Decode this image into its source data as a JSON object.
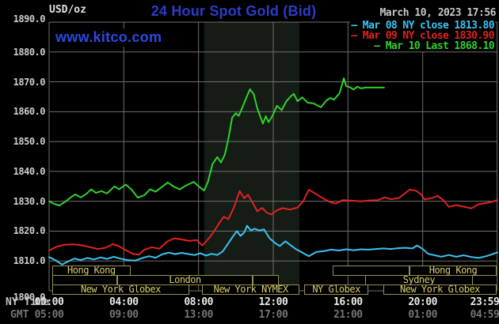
{
  "page": {
    "title": "24 Hour Spot Gold (Bid)",
    "datetime": "March 10, 2023 17:56",
    "watermark": "www.kitco.com",
    "y_axis_unit": "USD/oz",
    "x_axis_row1_label": "NY Time",
    "x_axis_row2_label": "GMT"
  },
  "colors": {
    "background": "#000000",
    "grid": "#6f6f6f",
    "title_blue": "#2b3cc8",
    "watermark_blue": "#2c49e2",
    "session_border": "#96904e",
    "session_text": "#d8ca74",
    "band": "#151c15",
    "mar08_cyan": "#3ac4f2",
    "mar09_red": "#e02222",
    "mar10_green": "#2fd22f"
  },
  "legend": [
    {
      "label": "Mar 08 NY close 1813.80",
      "color": "#3ac4f2"
    },
    {
      "label": "Mar 09 NY close 1830.90",
      "color": "#e02222"
    },
    {
      "label": "Mar 10 Last 1868.10",
      "color": "#2fd22f"
    }
  ],
  "sessions": {
    "rows": [
      [
        {
          "label": "Hong Kong",
          "start": 0.17,
          "end": 4.35
        },
        {
          "label": "",
          "start": 15.2,
          "end": 19.3
        },
        {
          "label": "Hong Kong",
          "start": 19.3,
          "end": 23.95
        }
      ],
      [
        {
          "label": "",
          "start": 0.17,
          "end": 3.65
        },
        {
          "label": "London",
          "start": 3.65,
          "end": 10.9
        },
        {
          "label": "",
          "start": 10.9,
          "end": 12.3
        },
        {
          "label": "Sydney",
          "start": 16.9,
          "end": 22.7
        }
      ],
      [
        {
          "label": "New York Globex",
          "start": 0.17,
          "end": 7.5
        },
        {
          "label": "New York NYMEX",
          "start": 8.2,
          "end": 13.4
        },
        {
          "label": "NY Globex",
          "start": 13.65,
          "end": 17.1
        },
        {
          "label": "New York Globex",
          "start": 17.9,
          "end": 23.95
        }
      ]
    ]
  },
  "chart_data": {
    "type": "line",
    "title": "24 Hour Spot Gold (Bid)",
    "x_unit": "hour of day, NY time",
    "xlim": [
      0,
      24
    ],
    "ylim": [
      1800,
      1890
    ],
    "grid": true,
    "legend_position": "top-right",
    "highlight_band": {
      "t0": 8.3,
      "t1": 13.4,
      "note": "New York NYMEX hours"
    },
    "y_ticks": [
      {
        "label": "1890.0",
        "v": 1890
      },
      {
        "label": "1880.0",
        "v": 1880
      },
      {
        "label": "1870.0",
        "v": 1870
      },
      {
        "label": "1860.0",
        "v": 1860
      },
      {
        "label": "1850.0",
        "v": 1850
      },
      {
        "label": "1840.0",
        "v": 1840
      },
      {
        "label": "1830.0",
        "v": 1830
      },
      {
        "label": "1820.0",
        "v": 1820
      },
      {
        "label": "1810.0",
        "v": 1810
      },
      {
        "label": "1800.0",
        "v": 1800
      }
    ],
    "x_ticks_ny": [
      {
        "label": "00:00",
        "t": 0
      },
      {
        "label": "04:00",
        "t": 4
      },
      {
        "label": "08:00",
        "t": 8
      },
      {
        "label": "12:00",
        "t": 12
      },
      {
        "label": "16:00",
        "t": 16
      },
      {
        "label": "20:00",
        "t": 20
      },
      {
        "label": "23:59",
        "t": 23.983
      }
    ],
    "x_ticks_gmt": [
      {
        "label": "05:00",
        "t": 0
      },
      {
        "label": "09:00",
        "t": 4
      },
      {
        "label": "13:00",
        "t": 8
      },
      {
        "label": "17:00",
        "t": 12
      },
      {
        "label": "21:00",
        "t": 16
      },
      {
        "label": "01:00",
        "t": 20
      },
      {
        "label": "04:59",
        "t": 23.983
      }
    ],
    "series": [
      {
        "name": "Mar 08",
        "close_label": "NY close 1813.80",
        "color": "#3ac4f2",
        "points": [
          [
            0,
            1811.3
          ],
          [
            0.35,
            1810.2
          ],
          [
            0.7,
            1808.8
          ],
          [
            1.0,
            1809.8
          ],
          [
            1.35,
            1810.8
          ],
          [
            1.7,
            1810.3
          ],
          [
            2.05,
            1811.0
          ],
          [
            2.4,
            1810.5
          ],
          [
            2.75,
            1811.2
          ],
          [
            3.1,
            1810.7
          ],
          [
            3.45,
            1811.4
          ],
          [
            3.8,
            1810.8
          ],
          [
            4.2,
            1810.3
          ],
          [
            4.6,
            1810.1
          ],
          [
            5.0,
            1811.0
          ],
          [
            5.35,
            1811.6
          ],
          [
            5.7,
            1811.1
          ],
          [
            6.05,
            1812.2
          ],
          [
            6.4,
            1812.8
          ],
          [
            6.75,
            1812.3
          ],
          [
            7.1,
            1812.7
          ],
          [
            7.45,
            1812.3
          ],
          [
            7.8,
            1812.0
          ],
          [
            8.1,
            1812.6
          ],
          [
            8.4,
            1811.8
          ],
          [
            8.7,
            1812.4
          ],
          [
            9.0,
            1812.0
          ],
          [
            9.3,
            1813.2
          ],
          [
            9.6,
            1816.0
          ],
          [
            9.85,
            1818.3
          ],
          [
            10.05,
            1820.0
          ],
          [
            10.25,
            1818.4
          ],
          [
            10.45,
            1819.6
          ],
          [
            10.6,
            1821.8
          ],
          [
            10.8,
            1820.2
          ],
          [
            11.0,
            1820.8
          ],
          [
            11.25,
            1820.2
          ],
          [
            11.5,
            1820.6
          ],
          [
            11.8,
            1817.6
          ],
          [
            12.1,
            1816.0
          ],
          [
            12.35,
            1815.0
          ],
          [
            12.65,
            1816.6
          ],
          [
            12.9,
            1815.4
          ],
          [
            13.2,
            1814.0
          ],
          [
            13.5,
            1813.0
          ],
          [
            13.9,
            1811.6
          ],
          [
            14.3,
            1813.0
          ],
          [
            14.7,
            1813.3
          ],
          [
            15.1,
            1813.8
          ],
          [
            15.5,
            1813.5
          ],
          [
            15.9,
            1813.9
          ],
          [
            16.3,
            1813.6
          ],
          [
            16.7,
            1813.9
          ],
          [
            17.1,
            1813.8
          ],
          [
            17.5,
            1814.0
          ],
          [
            17.9,
            1814.2
          ],
          [
            18.3,
            1814.0
          ],
          [
            18.7,
            1814.3
          ],
          [
            19.1,
            1814.4
          ],
          [
            19.45,
            1814.2
          ],
          [
            19.7,
            1815.2
          ],
          [
            20.0,
            1814.0
          ],
          [
            20.3,
            1812.4
          ],
          [
            20.7,
            1811.8
          ],
          [
            21.0,
            1811.4
          ],
          [
            21.4,
            1812.0
          ],
          [
            21.8,
            1811.4
          ],
          [
            22.2,
            1811.9
          ],
          [
            22.6,
            1811.3
          ],
          [
            23.0,
            1811.0
          ],
          [
            23.4,
            1811.6
          ],
          [
            23.7,
            1812.2
          ],
          [
            24,
            1812.9
          ]
        ]
      },
      {
        "name": "Mar 09",
        "close_label": "NY close 1830.90",
        "color": "#e02222",
        "points": [
          [
            0,
            1813.5
          ],
          [
            0.4,
            1814.8
          ],
          [
            0.8,
            1815.4
          ],
          [
            1.3,
            1815.6
          ],
          [
            1.8,
            1815.2
          ],
          [
            2.2,
            1814.6
          ],
          [
            2.6,
            1814.0
          ],
          [
            3.0,
            1814.4
          ],
          [
            3.4,
            1815.6
          ],
          [
            3.7,
            1815.1
          ],
          [
            4.1,
            1813.6
          ],
          [
            4.5,
            1812.4
          ],
          [
            4.8,
            1812.1
          ],
          [
            5.1,
            1813.8
          ],
          [
            5.5,
            1814.6
          ],
          [
            5.9,
            1814.1
          ],
          [
            6.3,
            1816.4
          ],
          [
            6.7,
            1817.6
          ],
          [
            7.1,
            1817.2
          ],
          [
            7.5,
            1816.7
          ],
          [
            7.9,
            1817.0
          ],
          [
            8.2,
            1815.2
          ],
          [
            8.5,
            1817.2
          ],
          [
            8.8,
            1819.6
          ],
          [
            9.1,
            1822.6
          ],
          [
            9.35,
            1824.8
          ],
          [
            9.6,
            1824.0
          ],
          [
            9.9,
            1828.0
          ],
          [
            10.2,
            1833.4
          ],
          [
            10.45,
            1831.0
          ],
          [
            10.65,
            1832.2
          ],
          [
            10.9,
            1829.4
          ],
          [
            11.15,
            1826.6
          ],
          [
            11.4,
            1827.8
          ],
          [
            11.65,
            1826.2
          ],
          [
            11.9,
            1825.6
          ],
          [
            12.2,
            1827.0
          ],
          [
            12.5,
            1827.7
          ],
          [
            12.9,
            1827.2
          ],
          [
            13.3,
            1827.9
          ],
          [
            13.6,
            1830.0
          ],
          [
            13.9,
            1833.8
          ],
          [
            14.2,
            1832.8
          ],
          [
            14.6,
            1831.2
          ],
          [
            15.0,
            1829.8
          ],
          [
            15.35,
            1829.2
          ],
          [
            15.7,
            1830.4
          ],
          [
            16.2,
            1830.2
          ],
          [
            16.7,
            1830.0
          ],
          [
            17.2,
            1830.3
          ],
          [
            17.6,
            1830.4
          ],
          [
            17.95,
            1831.3
          ],
          [
            18.3,
            1830.7
          ],
          [
            18.7,
            1831.0
          ],
          [
            19.0,
            1832.4
          ],
          [
            19.3,
            1833.9
          ],
          [
            19.65,
            1833.5
          ],
          [
            19.9,
            1832.4
          ],
          [
            20.1,
            1830.6
          ],
          [
            20.45,
            1831.0
          ],
          [
            20.8,
            1831.8
          ],
          [
            21.1,
            1830.4
          ],
          [
            21.4,
            1828.1
          ],
          [
            21.8,
            1828.7
          ],
          [
            22.2,
            1828.2
          ],
          [
            22.6,
            1827.6
          ],
          [
            23.0,
            1829.0
          ],
          [
            23.4,
            1829.4
          ],
          [
            23.7,
            1829.8
          ],
          [
            24,
            1830.4
          ]
        ]
      },
      {
        "name": "Mar 10",
        "close_label": "Last 1868.10",
        "color": "#2fd22f",
        "points": [
          [
            0,
            1830.0
          ],
          [
            0.3,
            1829.0
          ],
          [
            0.55,
            1828.6
          ],
          [
            0.9,
            1830.0
          ],
          [
            1.2,
            1831.5
          ],
          [
            1.4,
            1832.3
          ],
          [
            1.7,
            1831.3
          ],
          [
            2.0,
            1832.5
          ],
          [
            2.25,
            1834.0
          ],
          [
            2.5,
            1832.8
          ],
          [
            2.8,
            1833.4
          ],
          [
            3.1,
            1832.6
          ],
          [
            3.5,
            1835.0
          ],
          [
            3.75,
            1834.0
          ],
          [
            4.1,
            1835.6
          ],
          [
            4.4,
            1834.0
          ],
          [
            4.75,
            1831.2
          ],
          [
            5.1,
            1832.0
          ],
          [
            5.4,
            1834.0
          ],
          [
            5.7,
            1833.2
          ],
          [
            6.0,
            1834.6
          ],
          [
            6.35,
            1836.3
          ],
          [
            6.7,
            1834.8
          ],
          [
            7.0,
            1834.0
          ],
          [
            7.3,
            1835.2
          ],
          [
            7.75,
            1836.5
          ],
          [
            8.0,
            1835.0
          ],
          [
            8.3,
            1833.6
          ],
          [
            8.5,
            1836.5
          ],
          [
            8.75,
            1842.5
          ],
          [
            9.0,
            1844.8
          ],
          [
            9.2,
            1843.0
          ],
          [
            9.4,
            1845.5
          ],
          [
            9.6,
            1851.0
          ],
          [
            9.8,
            1858.0
          ],
          [
            10.0,
            1859.5
          ],
          [
            10.15,
            1858.6
          ],
          [
            10.35,
            1861.5
          ],
          [
            10.55,
            1864.5
          ],
          [
            10.75,
            1867.5
          ],
          [
            10.95,
            1866.0
          ],
          [
            11.15,
            1861.0
          ],
          [
            11.45,
            1856.0
          ],
          [
            11.6,
            1858.5
          ],
          [
            11.75,
            1856.5
          ],
          [
            11.95,
            1858.5
          ],
          [
            12.2,
            1862.0
          ],
          [
            12.45,
            1860.5
          ],
          [
            12.7,
            1863.5
          ],
          [
            12.95,
            1865.2
          ],
          [
            13.1,
            1866.0
          ],
          [
            13.3,
            1863.5
          ],
          [
            13.55,
            1864.8
          ],
          [
            13.85,
            1863.0
          ],
          [
            14.15,
            1862.8
          ],
          [
            14.55,
            1861.5
          ],
          [
            14.85,
            1863.8
          ],
          [
            15.05,
            1864.6
          ],
          [
            15.25,
            1864.0
          ],
          [
            15.55,
            1866.2
          ],
          [
            15.78,
            1871.2
          ],
          [
            15.9,
            1868.6
          ],
          [
            16.1,
            1868.2
          ],
          [
            16.3,
            1867.4
          ],
          [
            16.5,
            1868.4
          ],
          [
            16.7,
            1867.8
          ],
          [
            16.95,
            1868.1
          ],
          [
            17.93,
            1868.1
          ]
        ]
      }
    ]
  }
}
